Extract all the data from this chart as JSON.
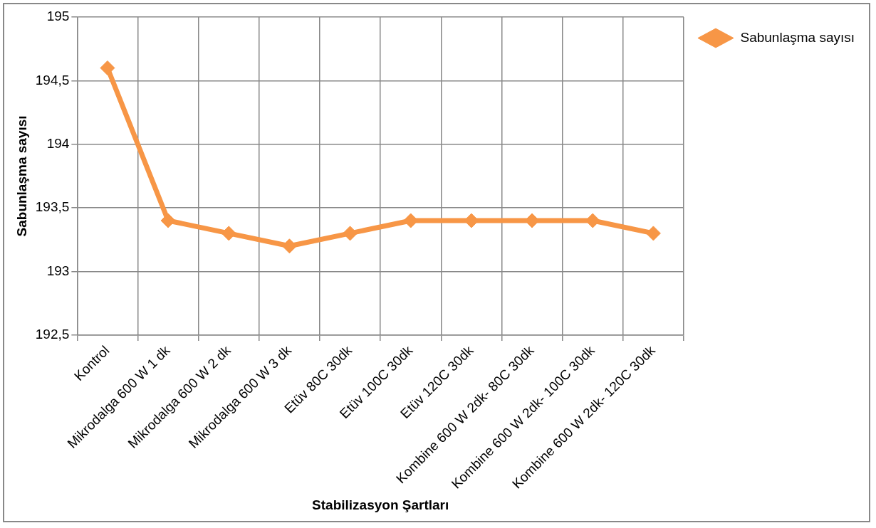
{
  "chart_data": {
    "type": "line",
    "xlabel": "Stabilizasyon Şartları",
    "ylabel": "Sabunlaşma sayısı",
    "categories": [
      "Kontrol",
      "Mikrodalga 600 W 1 dk",
      "Mikrodalga 600 W 2 dk",
      "Mikrodalga 600 W 3 dk",
      "Etüv 80C 30dk",
      "Etüv 100C 30dk",
      "Etüv 120C 30dk",
      "Kombine 600 W 2dk- 80C 30dk",
      "Kombine 600 W 2dk- 100C 30dk",
      "Kombine 600 W 2dk- 120C 30dk"
    ],
    "series": [
      {
        "name": "Sabunlaşma sayısı",
        "color": "#f79646",
        "values": [
          194.6,
          193.4,
          193.3,
          193.2,
          193.3,
          193.4,
          193.4,
          193.4,
          193.4,
          193.3
        ]
      }
    ],
    "ylim": [
      192.5,
      195
    ],
    "yticks": [
      {
        "value": 192.5,
        "label": "192,5"
      },
      193,
      {
        "value": 193.5,
        "label": "193,5"
      },
      194,
      {
        "value": 194.5,
        "label": "194,5"
      },
      195
    ],
    "grid": true,
    "legend": "right",
    "marker": "diamond",
    "line_style": "solid"
  }
}
